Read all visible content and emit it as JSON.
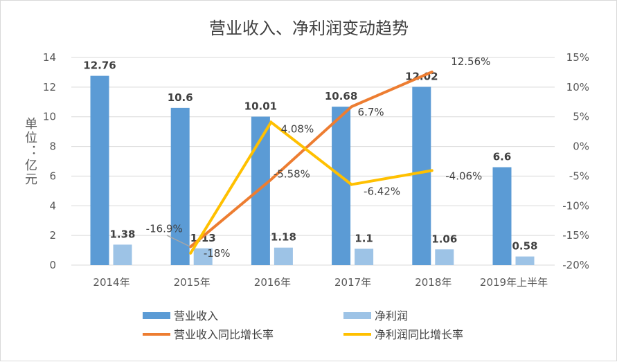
{
  "chart_data": {
    "type": "bar+line",
    "title": "营业收入、净利润变动趋势",
    "ylabel": "单位：亿元",
    "ylim": [
      0,
      14
    ],
    "y_ticks": [
      "0",
      "2",
      "4",
      "6",
      "8",
      "10",
      "12",
      "14"
    ],
    "y2lim": [
      -20,
      15
    ],
    "y2_ticks": [
      "-20%",
      "-15%",
      "-10%",
      "-5%",
      "0%",
      "5%",
      "10%",
      "15%"
    ],
    "categories": [
      "2014年",
      "2015年",
      "2016年",
      "2017年",
      "2018年",
      "2019年上半年"
    ],
    "grid": true,
    "legend_position": "bottom",
    "bar_series": [
      {
        "name": "营业收入",
        "color": "#5b9bd5",
        "values": [
          12.76,
          10.6,
          10.01,
          10.68,
          12.02,
          6.6
        ],
        "labels": [
          "12.76",
          "10.6",
          "10.01",
          "10.68",
          "12.02",
          "6.6"
        ]
      },
      {
        "name": "净利润",
        "color": "#9dc3e6",
        "values": [
          1.38,
          1.13,
          1.18,
          1.1,
          1.06,
          0.58
        ],
        "labels": [
          "1.38",
          "1.13",
          "1.18",
          "1.1",
          "1.06",
          "0.58"
        ]
      }
    ],
    "line_series": [
      {
        "name": "营业收入同比增长率",
        "color": "#ed7d31",
        "values": [
          null,
          -16.9,
          -5.58,
          6.7,
          12.56,
          null
        ],
        "labels": [
          "",
          "-16.9%",
          "-5.58%",
          "6.7%",
          "12.56%",
          ""
        ]
      },
      {
        "name": "净利润同比增长率",
        "color": "#ffc000",
        "values": [
          null,
          -18,
          4.08,
          -6.42,
          -4.06,
          null
        ],
        "labels": [
          "",
          "-18%",
          "4.08%",
          "-6.42%",
          "-4.06%",
          ""
        ]
      }
    ]
  }
}
